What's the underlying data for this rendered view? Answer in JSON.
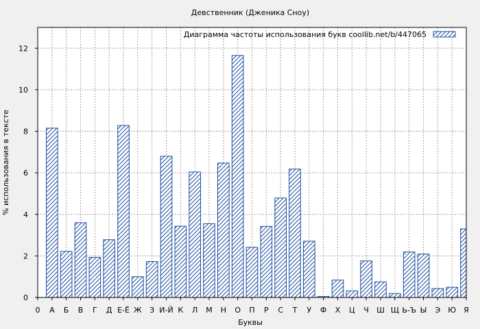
{
  "chart_data": {
    "type": "bar",
    "title": "Девственник (Дженика Сноу)",
    "xlabel": "Буквы",
    "ylabel": "% использования в тексте",
    "legend_label": "Диаграмма частоты использования букв  coollib.net/b/447065",
    "legend_position": "top-right",
    "grid": true,
    "ylim": [
      0,
      13
    ],
    "yticks": [
      0,
      2,
      4,
      6,
      8,
      10,
      12
    ],
    "x_tick_labels": [
      "0",
      "А",
      "Б",
      "В",
      "Г",
      "Д",
      "Е-Ё",
      "Ж",
      "З",
      "И-Й",
      "К",
      "Л",
      "М",
      "Н",
      "О",
      "П",
      "Р",
      "С",
      "Т",
      "У",
      "Ф",
      "Х",
      "Ц",
      "Ч",
      "Ш",
      "Щ",
      "Ь-Ъ",
      "Ы",
      "Э",
      "Ю",
      "Я"
    ],
    "categories": [
      "А",
      "Б",
      "В",
      "Г",
      "Д",
      "Е-Ё",
      "Ж",
      "З",
      "И-Й",
      "К",
      "Л",
      "М",
      "Н",
      "О",
      "П",
      "Р",
      "С",
      "Т",
      "У",
      "Ф",
      "Х",
      "Ц",
      "Ч",
      "Ш",
      "Щ",
      "Ь-Ъ",
      "Ы",
      "Э",
      "Ю",
      "Я"
    ],
    "values": [
      8.15,
      2.22,
      3.6,
      1.93,
      2.78,
      8.28,
      1.0,
      1.73,
      6.8,
      3.43,
      6.04,
      3.55,
      6.47,
      11.65,
      2.42,
      3.42,
      4.79,
      6.18,
      2.71,
      0.05,
      0.84,
      0.32,
      1.76,
      0.75,
      0.19,
      2.19,
      2.09,
      0.43,
      0.49,
      3.3
    ],
    "colors": {
      "bar_stroke": "#1e4fa0",
      "plot_bg": "#ffffff",
      "page_bg": "#f0f0f0"
    }
  }
}
